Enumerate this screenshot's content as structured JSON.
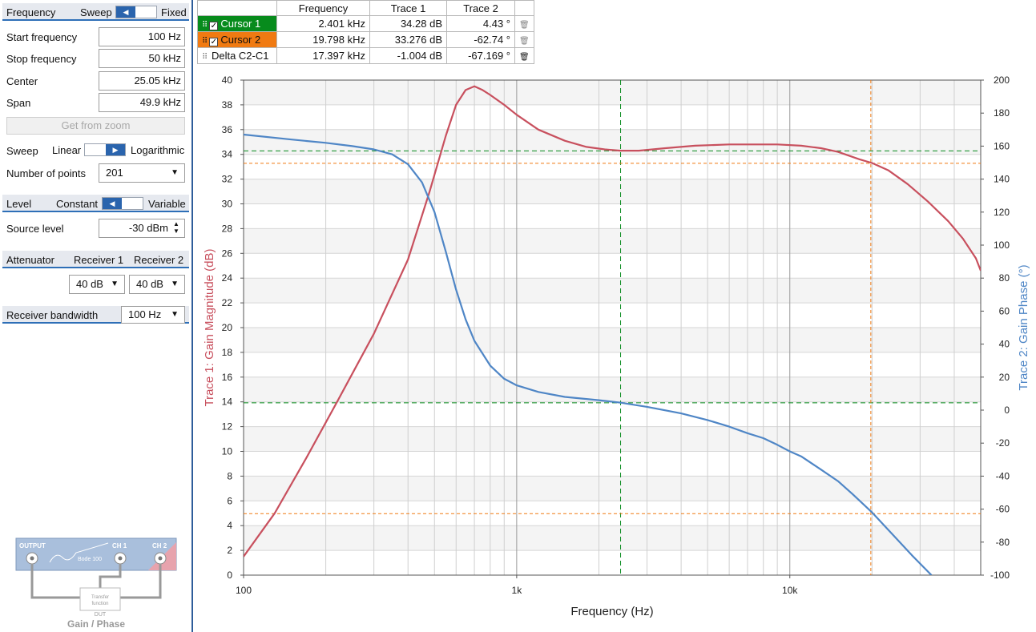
{
  "left": {
    "frequency": {
      "header": "Frequency",
      "mode_left": "Sweep",
      "mode_right": "Fixed",
      "start_label": "Start frequency",
      "start_value": "100 Hz",
      "stop_label": "Stop frequency",
      "stop_value": "50 kHz",
      "center_label": "Center",
      "center_value": "25.05 kHz",
      "span_label": "Span",
      "span_value": "49.9 kHz",
      "zoom_button": "Get from zoom",
      "sweep_label": "Sweep",
      "sweep_left": "Linear",
      "sweep_right": "Logarithmic",
      "points_label": "Number of points",
      "points_value": "201"
    },
    "level": {
      "header": "Level",
      "mode_left": "Constant",
      "mode_right": "Variable",
      "source_label": "Source level",
      "source_value": "-30 dBm"
    },
    "attenuator": {
      "header": "Attenuator",
      "rx1_label": "Receiver 1",
      "rx2_label": "Receiver 2",
      "rx1_value": "40 dB",
      "rx2_value": "40 dB"
    },
    "bandwidth": {
      "label": "Receiver bandwidth",
      "value": "100 Hz"
    },
    "diagram": {
      "output": "OUTPUT",
      "ch1": "CH 1",
      "ch2": "CH 2",
      "device": "Bode 100",
      "dut_line1": "Transfer",
      "dut_line2": "function",
      "dut": "DUT",
      "caption": "Gain / Phase"
    }
  },
  "cursor_table": {
    "headers": [
      "Frequency",
      "Trace 1",
      "Trace 2"
    ],
    "rows": [
      {
        "name": "Cursor 1",
        "freq": "2.401 kHz",
        "t1": "34.28 dB",
        "t2": "4.43 °"
      },
      {
        "name": "Cursor 2",
        "freq": "19.798 kHz",
        "t1": "33.276 dB",
        "t2": "-62.74 °"
      },
      {
        "name": "Delta C2-C1",
        "freq": "17.397 kHz",
        "t1": "-1.004 dB",
        "t2": "-67.169 °"
      }
    ]
  },
  "colors": {
    "trace1": "#c8505e",
    "trace2": "#4f86c6",
    "cursor1": "#078b1c",
    "cursor2": "#f07a12",
    "accent": "#2a64ad"
  },
  "chart_data": {
    "type": "line",
    "xlabel": "Frequency (Hz)",
    "ylabel": "Trace 1: Gain Magnitude (dB)",
    "y2label": "Trace 2: Gain Phase (°)",
    "xscale": "log",
    "xlim": [
      100,
      50000
    ],
    "ylim": [
      0,
      40
    ],
    "y2lim": [
      -100,
      200
    ],
    "xticks": [
      {
        "v": 100,
        "label": "100"
      },
      {
        "v": 1000,
        "label": "1k"
      },
      {
        "v": 10000,
        "label": "10k"
      }
    ],
    "yticks": [
      0,
      2,
      4,
      6,
      8,
      10,
      12,
      14,
      16,
      18,
      20,
      22,
      24,
      26,
      28,
      30,
      32,
      34,
      36,
      38,
      40
    ],
    "y2ticks": [
      -100,
      -80,
      -60,
      -40,
      -20,
      0,
      20,
      40,
      60,
      80,
      100,
      120,
      140,
      160,
      180,
      200
    ],
    "grid": true,
    "series": [
      {
        "axis": "left",
        "x": [
          100,
          130,
          170,
          220,
          300,
          400,
          480,
          550,
          600,
          650,
          700,
          750,
          800,
          900,
          1000,
          1200,
          1500,
          1800,
          2100,
          2400,
          2800,
          3500,
          4500,
          6000,
          7500,
          9000,
          11000,
          13000,
          15000,
          18000,
          20000,
          23000,
          27000,
          32000,
          38000,
          43000,
          48000,
          50000
        ],
        "y": [
          1.5,
          5.0,
          9.5,
          14.0,
          19.5,
          25.5,
          31.0,
          35.5,
          38.0,
          39.2,
          39.5,
          39.2,
          38.8,
          38.0,
          37.2,
          36.0,
          35.1,
          34.6,
          34.4,
          34.3,
          34.3,
          34.5,
          34.7,
          34.8,
          34.8,
          34.8,
          34.7,
          34.5,
          34.2,
          33.6,
          33.3,
          32.7,
          31.6,
          30.2,
          28.6,
          27.2,
          25.6,
          24.6
        ]
      },
      {
        "axis": "right",
        "x": [
          100,
          150,
          200,
          250,
          300,
          350,
          400,
          450,
          500,
          550,
          600,
          650,
          700,
          800,
          900,
          1000,
          1200,
          1500,
          2000,
          2400,
          3000,
          4000,
          5000,
          6000,
          7000,
          8000,
          9000,
          10000,
          11000,
          13000,
          15000,
          17000,
          20000,
          24000,
          28000,
          33000
        ],
        "y": [
          167,
          164,
          162,
          160,
          158,
          155,
          149,
          138,
          120,
          96,
          73,
          55,
          42,
          27,
          19,
          15,
          11,
          8,
          6,
          4.5,
          2,
          -2,
          -6,
          -10,
          -14,
          -17,
          -21,
          -25,
          -28,
          -36,
          -43,
          -51,
          -62,
          -76,
          -88,
          -100
        ]
      }
    ],
    "cursors": [
      {
        "name": "Cursor 1",
        "x": 2401,
        "y1": 34.28,
        "y2": 4.43
      },
      {
        "name": "Cursor 2",
        "x": 19798,
        "y1": 33.276,
        "y2": -62.74
      }
    ]
  }
}
